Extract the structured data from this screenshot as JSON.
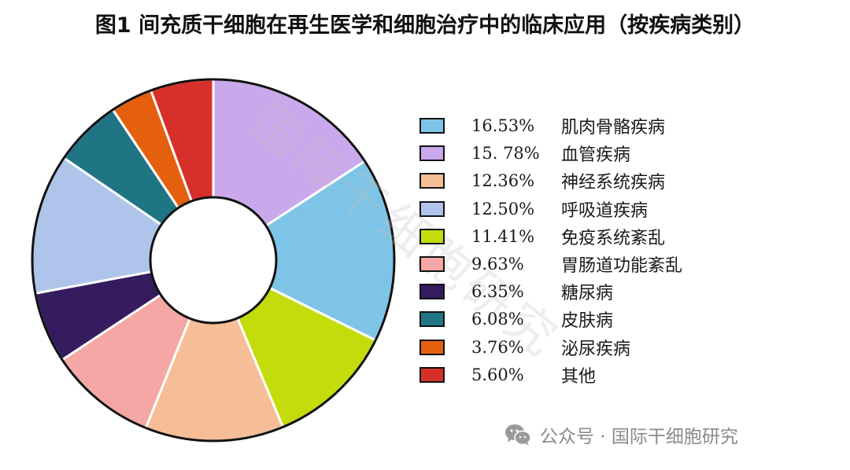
{
  "chart_data": {
    "type": "pie",
    "title": "图1  间充质干细胞在再生医学和细胞治疗中的临床应用（按疾病类别）",
    "donut": true,
    "legend_position": "right",
    "series": [
      {
        "name": "肌肉骨骼疾病",
        "value_label": "16.53%",
        "value": 16.53,
        "color": "#7ec4e6"
      },
      {
        "name": "血管疾病",
        "value_label": "15. 78%",
        "value": 15.78,
        "color": "#c9a9ec"
      },
      {
        "name": "神经系统疾病",
        "value_label": "12.36%",
        "value": 12.36,
        "color": "#f6be97"
      },
      {
        "name": "呼吸道疾病",
        "value_label": "12.50%",
        "value": 12.5,
        "color": "#afc4ea"
      },
      {
        "name": "免疫系统紊乱",
        "value_label": "11.41%",
        "value": 11.41,
        "color": "#c4dc0c"
      },
      {
        "name": "胃肠道功能紊乱",
        "value_label": "9.63%",
        "value": 9.63,
        "color": "#f4a7a4"
      },
      {
        "name": "糖尿病",
        "value_label": "6.35%",
        "value": 6.35,
        "color": "#341c5e"
      },
      {
        "name": "皮肤病",
        "value_label": "6.08%",
        "value": 6.08,
        "color": "#1f7584"
      },
      {
        "name": "泌尿疾病",
        "value_label": "3.76%",
        "value": 3.76,
        "color": "#e4600f"
      },
      {
        "name": "其他",
        "value_label": "5.60%",
        "value": 5.6,
        "color": "#d7302b"
      }
    ],
    "clockwise_slice_order_from_top": [
      "血管疾病",
      "肌肉骨骼疾病",
      "免疫系统紊乱",
      "神经系统疾病",
      "胃肠道功能紊乱",
      "糖尿病",
      "呼吸道疾病",
      "皮肤病",
      "泌尿疾病",
      "其他"
    ]
  },
  "watermark": {
    "diagonal_text": "国际干细胞研究",
    "source": "公众号 · 国际干细胞研究",
    "icon": "wechat-icon"
  }
}
